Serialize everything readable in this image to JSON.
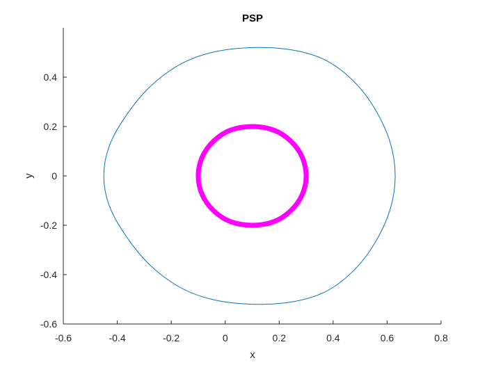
{
  "chart_data": {
    "type": "line",
    "title": "PSP",
    "xlabel": "x",
    "ylabel": "y",
    "xlim": [
      -0.6,
      0.8
    ],
    "ylim": [
      -0.6,
      0.6
    ],
    "xticks": [
      -0.6,
      -0.4,
      -0.2,
      0,
      0.2,
      0.4,
      0.6,
      0.8
    ],
    "xtick_labels": [
      "-0.6",
      "-0.4",
      "-0.2",
      "0",
      "0.2",
      "0.4",
      "0.6",
      "0.8"
    ],
    "yticks": [
      -0.6,
      -0.4,
      -0.2,
      0,
      0.2,
      0.4
    ],
    "ytick_labels": [
      "-0.6",
      "-0.4",
      "-0.2",
      "0",
      "0.2",
      "0.4"
    ],
    "grid": false,
    "legend": null,
    "series": [
      {
        "shape": "closed-curve",
        "color": "#0072BD",
        "line": "thin",
        "x": [
          0.63,
          0.61,
          0.55,
          0.47,
          0.37,
          0.25,
          0.1,
          -0.05,
          -0.17,
          -0.28,
          -0.37,
          -0.43,
          -0.45,
          -0.43,
          -0.37,
          -0.28,
          -0.17,
          -0.05,
          0.1,
          0.25,
          0.37,
          0.47,
          0.55,
          0.61,
          0.63
        ],
        "y": [
          0.0,
          0.14,
          0.28,
          0.39,
          0.47,
          0.51,
          0.52,
          0.5,
          0.45,
          0.36,
          0.24,
          0.12,
          0.0,
          -0.12,
          -0.24,
          -0.36,
          -0.45,
          -0.5,
          -0.52,
          -0.51,
          -0.47,
          -0.39,
          -0.28,
          -0.14,
          0.0
        ]
      },
      {
        "shape": "closed-curve",
        "color": "#FF00FF",
        "line": "thick",
        "x": [
          0.3,
          0.285,
          0.243,
          0.181,
          0.1,
          0.019,
          -0.043,
          -0.085,
          -0.1,
          -0.085,
          -0.043,
          0.019,
          0.1,
          0.181,
          0.243,
          0.285,
          0.3
        ],
        "y": [
          0.0,
          0.077,
          0.141,
          0.185,
          0.2,
          0.185,
          0.141,
          0.077,
          0.0,
          -0.077,
          -0.141,
          -0.185,
          -0.2,
          -0.185,
          -0.141,
          -0.077,
          0.0
        ]
      }
    ]
  }
}
